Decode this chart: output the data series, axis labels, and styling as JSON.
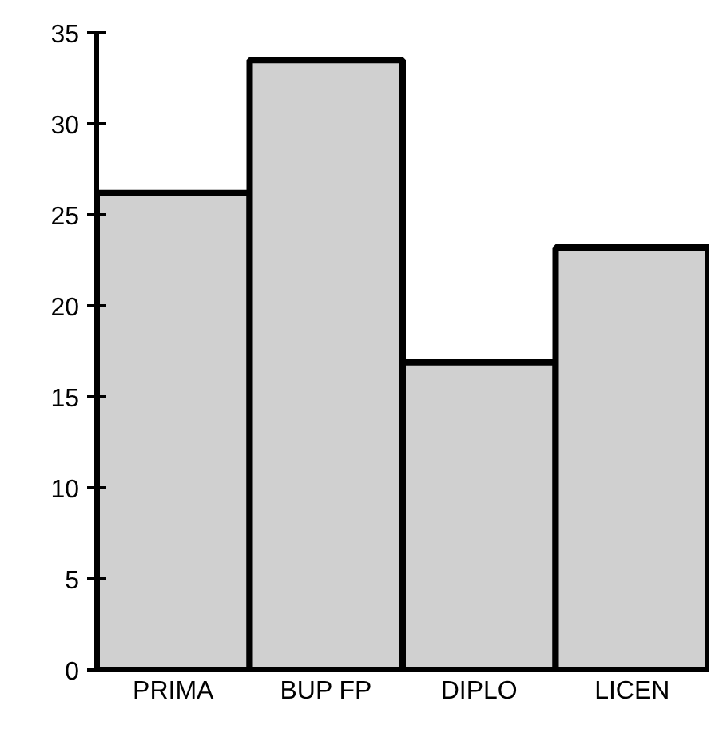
{
  "chart_data": {
    "type": "bar",
    "categories": [
      "PRIMA",
      "BUP FP",
      "DIPLO",
      "LICEN"
    ],
    "values": [
      26.2,
      33.5,
      16.9,
      23.2
    ],
    "color": "#d0d0d0",
    "ylim": [
      0,
      35
    ],
    "yticks": [
      0,
      5,
      10,
      15,
      20,
      25,
      30,
      35
    ],
    "grid": false
  }
}
